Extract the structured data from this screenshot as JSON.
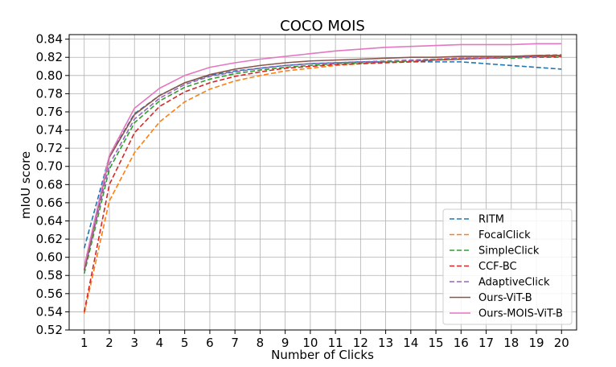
{
  "chart_data": {
    "type": "line",
    "title": "COCO MOIS",
    "xlabel": "Number of Clicks",
    "ylabel": "mIoU score",
    "xlim": [
      0.4,
      20.6
    ],
    "ylim": [
      0.52,
      0.845
    ],
    "grid": true,
    "legend_position": "lower-right",
    "x_ticks": [
      1,
      2,
      3,
      4,
      5,
      6,
      7,
      8,
      9,
      10,
      11,
      12,
      13,
      14,
      15,
      16,
      17,
      18,
      19,
      20
    ],
    "y_ticks": [
      0.52,
      0.54,
      0.56,
      0.58,
      0.6,
      0.62,
      0.64,
      0.66,
      0.68,
      0.7,
      0.72,
      0.74,
      0.76,
      0.78,
      0.8,
      0.82,
      0.84
    ],
    "y_tick_labels": [
      "0.52",
      "0.54",
      "0.56",
      "0.58",
      "0.60",
      "0.62",
      "0.64",
      "0.66",
      "0.68",
      "0.70",
      "0.72",
      "0.74",
      "0.76",
      "0.78",
      "0.80",
      "0.82",
      "0.84"
    ],
    "x": [
      1,
      2,
      3,
      4,
      5,
      6,
      7,
      8,
      9,
      10,
      11,
      12,
      13,
      14,
      15,
      16,
      17,
      18,
      19,
      20
    ],
    "series": [
      {
        "name": "RITM",
        "color": "#1f77b4",
        "dash": true,
        "values": [
          0.61,
          0.711,
          0.758,
          0.778,
          0.792,
          0.8,
          0.805,
          0.808,
          0.811,
          0.813,
          0.814,
          0.815,
          0.815,
          0.815,
          0.815,
          0.815,
          0.813,
          0.811,
          0.809,
          0.807
        ]
      },
      {
        "name": "FocalClick",
        "color": "#ff7f0e",
        "dash": true,
        "values": [
          0.538,
          0.662,
          0.715,
          0.749,
          0.771,
          0.785,
          0.794,
          0.8,
          0.805,
          0.808,
          0.811,
          0.813,
          0.815,
          0.816,
          0.818,
          0.819,
          0.82,
          0.821,
          0.822,
          0.823
        ]
      },
      {
        "name": "SimpleClick",
        "color": "#2ca02c",
        "dash": true,
        "values": [
          0.582,
          0.697,
          0.748,
          0.772,
          0.787,
          0.796,
          0.802,
          0.806,
          0.809,
          0.811,
          0.813,
          0.814,
          0.815,
          0.816,
          0.817,
          0.818,
          0.819,
          0.819,
          0.82,
          0.82
        ]
      },
      {
        "name": "CCF-BC",
        "color": "#d62728",
        "dash": true,
        "values": [
          0.54,
          0.68,
          0.737,
          0.766,
          0.782,
          0.792,
          0.799,
          0.804,
          0.808,
          0.81,
          0.812,
          0.813,
          0.814,
          0.815,
          0.817,
          0.818,
          0.819,
          0.82,
          0.821,
          0.821
        ]
      },
      {
        "name": "AdaptiveClick",
        "color": "#9467bd",
        "dash": true,
        "values": [
          0.585,
          0.702,
          0.752,
          0.775,
          0.79,
          0.799,
          0.804,
          0.808,
          0.811,
          0.813,
          0.814,
          0.815,
          0.816,
          0.817,
          0.818,
          0.819,
          0.819,
          0.82,
          0.821,
          0.822
        ]
      },
      {
        "name": "Ours-ViT-B",
        "color": "#8c564b",
        "dash": false,
        "values": [
          0.586,
          0.71,
          0.757,
          0.778,
          0.792,
          0.801,
          0.807,
          0.811,
          0.814,
          0.816,
          0.817,
          0.818,
          0.819,
          0.82,
          0.82,
          0.821,
          0.821,
          0.821,
          0.822,
          0.822
        ]
      },
      {
        "name": "Ours-MOIS-ViT-B",
        "color": "#e377c2",
        "dash": false,
        "values": [
          0.59,
          0.712,
          0.764,
          0.786,
          0.8,
          0.809,
          0.814,
          0.818,
          0.821,
          0.824,
          0.827,
          0.829,
          0.831,
          0.832,
          0.833,
          0.834,
          0.834,
          0.834,
          0.835,
          0.835
        ]
      }
    ]
  }
}
